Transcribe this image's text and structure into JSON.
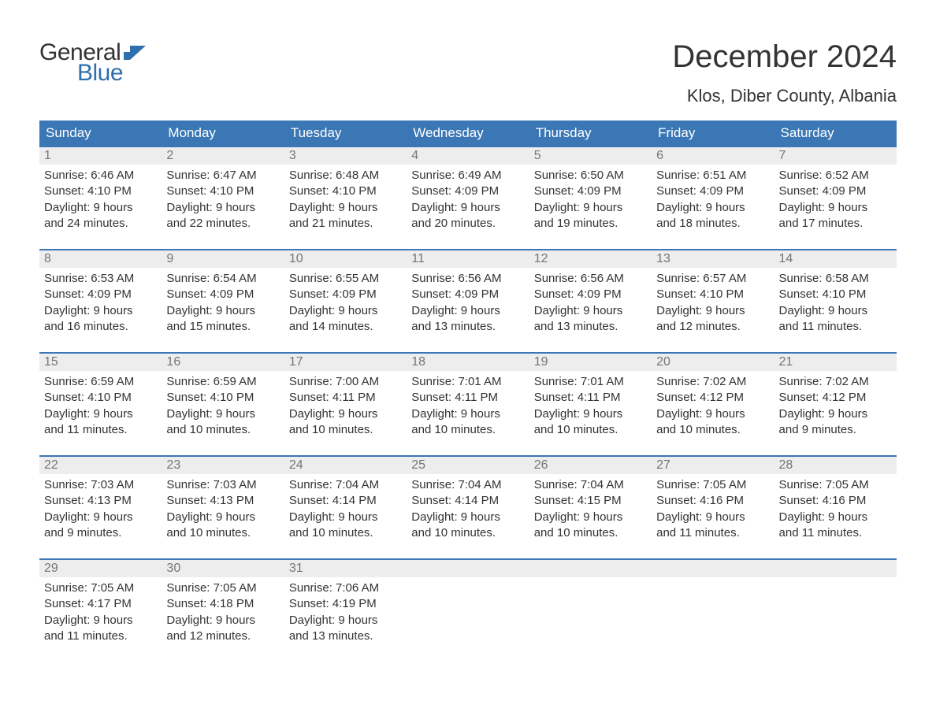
{
  "brand": {
    "word1": "General",
    "word2": "Blue",
    "flag_color": "#2f6fad"
  },
  "title": "December 2024",
  "location": "Klos, Diber County, Albania",
  "colors": {
    "header_bg": "#3b77b4",
    "header_text": "#ffffff",
    "divider": "#3b77b4",
    "daynum_bg": "#ededed",
    "daynum_text": "#757575",
    "body_text": "#333333",
    "background": "#ffffff"
  },
  "day_labels": [
    "Sunday",
    "Monday",
    "Tuesday",
    "Wednesday",
    "Thursday",
    "Friday",
    "Saturday"
  ],
  "weeks": [
    [
      {
        "n": "1",
        "sunrise": "6:46 AM",
        "sunset": "4:10 PM",
        "dl1": "9 hours",
        "dl2": "and 24 minutes."
      },
      {
        "n": "2",
        "sunrise": "6:47 AM",
        "sunset": "4:10 PM",
        "dl1": "9 hours",
        "dl2": "and 22 minutes."
      },
      {
        "n": "3",
        "sunrise": "6:48 AM",
        "sunset": "4:10 PM",
        "dl1": "9 hours",
        "dl2": "and 21 minutes."
      },
      {
        "n": "4",
        "sunrise": "6:49 AM",
        "sunset": "4:09 PM",
        "dl1": "9 hours",
        "dl2": "and 20 minutes."
      },
      {
        "n": "5",
        "sunrise": "6:50 AM",
        "sunset": "4:09 PM",
        "dl1": "9 hours",
        "dl2": "and 19 minutes."
      },
      {
        "n": "6",
        "sunrise": "6:51 AM",
        "sunset": "4:09 PM",
        "dl1": "9 hours",
        "dl2": "and 18 minutes."
      },
      {
        "n": "7",
        "sunrise": "6:52 AM",
        "sunset": "4:09 PM",
        "dl1": "9 hours",
        "dl2": "and 17 minutes."
      }
    ],
    [
      {
        "n": "8",
        "sunrise": "6:53 AM",
        "sunset": "4:09 PM",
        "dl1": "9 hours",
        "dl2": "and 16 minutes."
      },
      {
        "n": "9",
        "sunrise": "6:54 AM",
        "sunset": "4:09 PM",
        "dl1": "9 hours",
        "dl2": "and 15 minutes."
      },
      {
        "n": "10",
        "sunrise": "6:55 AM",
        "sunset": "4:09 PM",
        "dl1": "9 hours",
        "dl2": "and 14 minutes."
      },
      {
        "n": "11",
        "sunrise": "6:56 AM",
        "sunset": "4:09 PM",
        "dl1": "9 hours",
        "dl2": "and 13 minutes."
      },
      {
        "n": "12",
        "sunrise": "6:56 AM",
        "sunset": "4:09 PM",
        "dl1": "9 hours",
        "dl2": "and 13 minutes."
      },
      {
        "n": "13",
        "sunrise": "6:57 AM",
        "sunset": "4:10 PM",
        "dl1": "9 hours",
        "dl2": "and 12 minutes."
      },
      {
        "n": "14",
        "sunrise": "6:58 AM",
        "sunset": "4:10 PM",
        "dl1": "9 hours",
        "dl2": "and 11 minutes."
      }
    ],
    [
      {
        "n": "15",
        "sunrise": "6:59 AM",
        "sunset": "4:10 PM",
        "dl1": "9 hours",
        "dl2": "and 11 minutes."
      },
      {
        "n": "16",
        "sunrise": "6:59 AM",
        "sunset": "4:10 PM",
        "dl1": "9 hours",
        "dl2": "and 10 minutes."
      },
      {
        "n": "17",
        "sunrise": "7:00 AM",
        "sunset": "4:11 PM",
        "dl1": "9 hours",
        "dl2": "and 10 minutes."
      },
      {
        "n": "18",
        "sunrise": "7:01 AM",
        "sunset": "4:11 PM",
        "dl1": "9 hours",
        "dl2": "and 10 minutes."
      },
      {
        "n": "19",
        "sunrise": "7:01 AM",
        "sunset": "4:11 PM",
        "dl1": "9 hours",
        "dl2": "and 10 minutes."
      },
      {
        "n": "20",
        "sunrise": "7:02 AM",
        "sunset": "4:12 PM",
        "dl1": "9 hours",
        "dl2": "and 10 minutes."
      },
      {
        "n": "21",
        "sunrise": "7:02 AM",
        "sunset": "4:12 PM",
        "dl1": "9 hours",
        "dl2": "and 9 minutes."
      }
    ],
    [
      {
        "n": "22",
        "sunrise": "7:03 AM",
        "sunset": "4:13 PM",
        "dl1": "9 hours",
        "dl2": "and 9 minutes."
      },
      {
        "n": "23",
        "sunrise": "7:03 AM",
        "sunset": "4:13 PM",
        "dl1": "9 hours",
        "dl2": "and 10 minutes."
      },
      {
        "n": "24",
        "sunrise": "7:04 AM",
        "sunset": "4:14 PM",
        "dl1": "9 hours",
        "dl2": "and 10 minutes."
      },
      {
        "n": "25",
        "sunrise": "7:04 AM",
        "sunset": "4:14 PM",
        "dl1": "9 hours",
        "dl2": "and 10 minutes."
      },
      {
        "n": "26",
        "sunrise": "7:04 AM",
        "sunset": "4:15 PM",
        "dl1": "9 hours",
        "dl2": "and 10 minutes."
      },
      {
        "n": "27",
        "sunrise": "7:05 AM",
        "sunset": "4:16 PM",
        "dl1": "9 hours",
        "dl2": "and 11 minutes."
      },
      {
        "n": "28",
        "sunrise": "7:05 AM",
        "sunset": "4:16 PM",
        "dl1": "9 hours",
        "dl2": "and 11 minutes."
      }
    ],
    [
      {
        "n": "29",
        "sunrise": "7:05 AM",
        "sunset": "4:17 PM",
        "dl1": "9 hours",
        "dl2": "and 11 minutes."
      },
      {
        "n": "30",
        "sunrise": "7:05 AM",
        "sunset": "4:18 PM",
        "dl1": "9 hours",
        "dl2": "and 12 minutes."
      },
      {
        "n": "31",
        "sunrise": "7:06 AM",
        "sunset": "4:19 PM",
        "dl1": "9 hours",
        "dl2": "and 13 minutes."
      },
      {
        "empty": true
      },
      {
        "empty": true
      },
      {
        "empty": true
      },
      {
        "empty": true
      }
    ]
  ],
  "text": {
    "sunrise_prefix": "Sunrise: ",
    "sunset_prefix": "Sunset: ",
    "daylight_prefix": "Daylight: "
  }
}
